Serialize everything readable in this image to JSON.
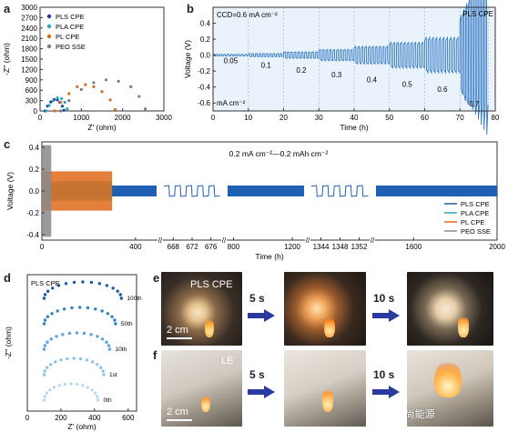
{
  "panels": {
    "a": "a",
    "b": "b",
    "c": "c",
    "d": "d",
    "e": "e",
    "f": "f"
  },
  "chart_data": [
    {
      "panel": "a",
      "type": "scatter",
      "xlabel": "Z' (ohm)",
      "ylabel": "-Z'' (ohm)",
      "xlim": [
        0,
        3000
      ],
      "ylim": [
        0,
        3000
      ],
      "xticks": [
        "0",
        "1000",
        "2000",
        "3000"
      ],
      "yticks": [
        "0",
        "300",
        "600",
        "900",
        "1200",
        "1500",
        "1800",
        "2100",
        "2400",
        "2700",
        "3000"
      ],
      "legend_position": "top-left",
      "series": [
        {
          "name": "PLS CPE",
          "color": "#1f3f8f",
          "x": [
            120,
            180,
            260,
            340,
            420,
            480,
            540,
            580
          ],
          "y": [
            0,
            140,
            260,
            330,
            320,
            250,
            140,
            20
          ]
        },
        {
          "name": "PLA CPE",
          "color": "#2aa6b8",
          "x": [
            150,
            220,
            320,
            420,
            520,
            600,
            660
          ],
          "y": [
            0,
            160,
            300,
            380,
            360,
            250,
            60
          ]
        },
        {
          "name": "PL  CPE",
          "color": "#e06a1a",
          "x": [
            350,
            500,
            700,
            900,
            1100,
            1300,
            1500,
            1700,
            1820
          ],
          "y": [
            0,
            250,
            500,
            700,
            760,
            700,
            560,
            320,
            40
          ]
        },
        {
          "name": "PEO SSE",
          "color": "#7d7d7d",
          "x": [
            500,
            700,
            1000,
            1300,
            1600,
            1900,
            2200,
            2400,
            2550
          ],
          "y": [
            0,
            300,
            620,
            820,
            900,
            860,
            700,
            420,
            60
          ]
        }
      ]
    },
    {
      "panel": "b",
      "type": "line",
      "title": "CCD=0.6 mA cm⁻²",
      "annotation_unit": "mA cm⁻²",
      "xlabel": "Time (h)",
      "ylabel": "Voltage (V)",
      "xlim": [
        0,
        80
      ],
      "ylim": [
        -0.7,
        0.6
      ],
      "xticks": [
        "0",
        "10",
        "20",
        "30",
        "40",
        "50",
        "60",
        "70",
        "80"
      ],
      "yticks": [
        "-0.6",
        "-0.4",
        "-0.2",
        "0.0",
        "0.2",
        "0.4"
      ],
      "legend": "PLS CPE",
      "current_steps": [
        {
          "label": "0.05",
          "t_start": 0,
          "t_end": 10,
          "amp": 0.01
        },
        {
          "label": "0.1",
          "t_start": 10,
          "t_end": 20,
          "amp": 0.02
        },
        {
          "label": "0.2",
          "t_start": 20,
          "t_end": 30,
          "amp": 0.04
        },
        {
          "label": "0.3",
          "t_start": 30,
          "t_end": 40,
          "amp": 0.07
        },
        {
          "label": "0.4",
          "t_start": 40,
          "t_end": 50,
          "amp": 0.11
        },
        {
          "label": "0.5",
          "t_start": 50,
          "t_end": 60,
          "amp": 0.16
        },
        {
          "label": "0.6",
          "t_start": 60,
          "t_end": 70,
          "amp": 0.22
        },
        {
          "label": "0.7",
          "t_start": 70,
          "t_end": 78,
          "amp": 0.5
        }
      ]
    },
    {
      "panel": "c",
      "type": "line",
      "title": "0.2 mA cm⁻²—0.2 mAh cm⁻²",
      "xlabel": "Time (h)",
      "ylabel": "Voltage (V)",
      "ylim": [
        -0.45,
        0.45
      ],
      "yticks": [
        "-0.4",
        "-0.2",
        "0.0",
        "0.2",
        "0.4"
      ],
      "xticks": [
        "0",
        "400",
        "668",
        "672",
        "676",
        "800",
        "1200",
        "1344",
        "1348",
        "1352",
        "1600",
        "2000"
      ],
      "legend_position": "bottom-right",
      "series": [
        {
          "name": "PLS CPE",
          "color": "#1f5fb4",
          "amp": 0.05,
          "t_end": 2000
        },
        {
          "name": "PLA CPE",
          "color": "#2aa6b8",
          "amp": 0.09,
          "t_end": 300
        },
        {
          "name": "PL   CPE",
          "color": "#e06a1a",
          "amp": 0.18,
          "t_end": 300
        },
        {
          "name": "PEO SSE",
          "color": "#8a8a8a",
          "amp": 0.42,
          "t_end": 40
        }
      ]
    },
    {
      "panel": "d",
      "type": "scatter",
      "title": "PLS CPE",
      "xlabel": "Z' (ohm)",
      "ylabel": "-Z'' (ohm)",
      "xticks": [
        "0",
        "200",
        "400",
        "600"
      ],
      "xlim": [
        0,
        650
      ],
      "series": [
        {
          "name": "0th",
          "color": "#b9d9f0",
          "offset": 0
        },
        {
          "name": "1st",
          "color": "#8fc2e8",
          "offset": 1
        },
        {
          "name": "10th",
          "color": "#5aa3dc",
          "offset": 2
        },
        {
          "name": "50th",
          "color": "#2f7fc8",
          "offset": 3
        },
        {
          "name": "100th",
          "color": "#1f5aa8",
          "offset": 4
        }
      ]
    }
  ],
  "photos": {
    "e_label": "PLS CPE",
    "f_label": "LE",
    "scale_bar": "2 cm",
    "time_1": "5 s",
    "time_2": "10 s"
  },
  "watermark": "公众号 · 毅•尚能源"
}
